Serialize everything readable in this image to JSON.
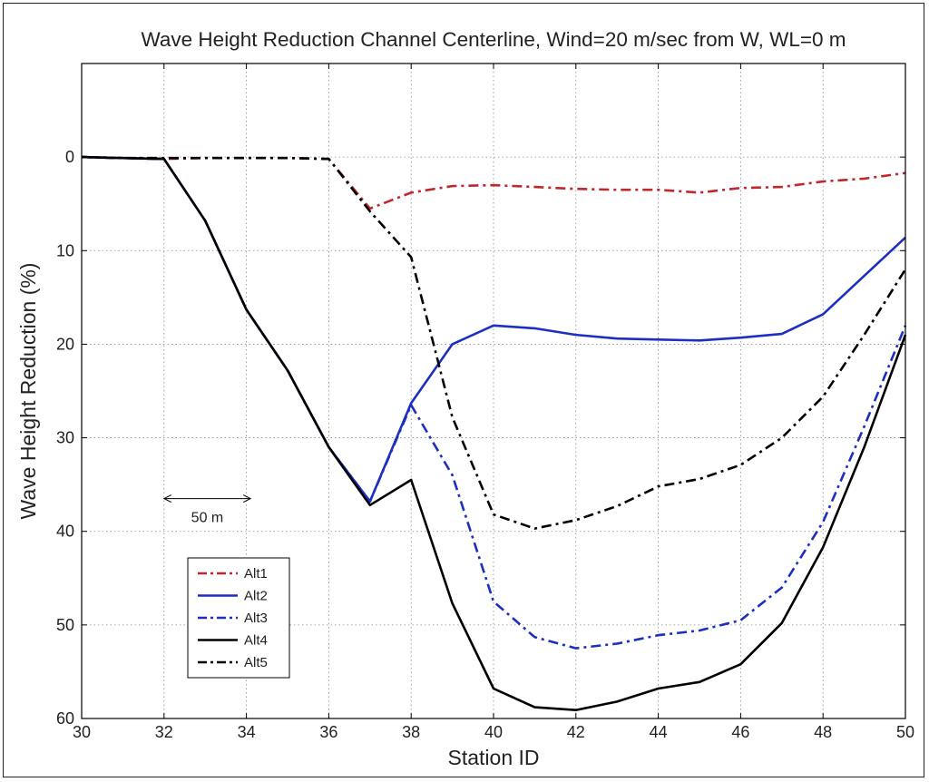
{
  "chart_data": {
    "type": "line",
    "title": "Wave Height Reduction Channel Centerline, Wind=20 m/sec from W, WL=0 m",
    "xlabel": "Station ID",
    "ylabel": "Wave Height Reduction (%)",
    "xlim": [
      30,
      50
    ],
    "ylim": [
      60,
      -10
    ],
    "y_inverted": true,
    "grid": true,
    "legend_placement": "lower-left",
    "xticks": [
      30,
      32,
      34,
      36,
      38,
      40,
      42,
      44,
      46,
      48,
      50
    ],
    "yticks": [
      0,
      10,
      20,
      30,
      40,
      50,
      60
    ],
    "annotation": {
      "text": "50 m",
      "x_start": 32,
      "x_end": 34.1,
      "y": 36.5
    },
    "series": [
      {
        "name": "Alt1",
        "color": "#c0272d",
        "style": "dashdot",
        "x": [
          30,
          31,
          32,
          33,
          34,
          35,
          36,
          37,
          38,
          39,
          40,
          41,
          42,
          43,
          44,
          45,
          46,
          47,
          48,
          49,
          50
        ],
        "y": [
          0,
          0.1,
          0.2,
          0.1,
          0.1,
          0.1,
          0.2,
          5.5,
          3.8,
          3.1,
          3,
          3.2,
          3.4,
          3.5,
          3.5,
          3.8,
          3.3,
          3.2,
          2.6,
          2.3,
          1.7
        ]
      },
      {
        "name": "Alt2",
        "color": "#1c2fc0",
        "style": "solid",
        "x": [
          30,
          31,
          32,
          33,
          34,
          35,
          36,
          37,
          38,
          39,
          40,
          41,
          42,
          43,
          44,
          45,
          46,
          47,
          48,
          49,
          50
        ],
        "y": [
          0,
          0.1,
          0.2,
          6.8,
          16.3,
          22.8,
          31,
          36.8,
          26.3,
          20,
          18,
          18.3,
          19,
          19.4,
          19.5,
          19.6,
          19.3,
          18.9,
          16.8,
          12.7,
          8.6
        ]
      },
      {
        "name": "Alt3",
        "color": "#1c2fc0",
        "style": "dashdot",
        "x": [
          30,
          31,
          32,
          33,
          34,
          35,
          36,
          37,
          38,
          39,
          40,
          41,
          42,
          43,
          44,
          45,
          46,
          47,
          48,
          49,
          50
        ],
        "y": [
          0,
          0.1,
          0.2,
          6.8,
          16.3,
          22.8,
          31,
          36.8,
          26.5,
          34,
          47.5,
          51.3,
          52.5,
          52,
          51.1,
          50.6,
          49.5,
          46,
          39,
          28.8,
          18
        ]
      },
      {
        "name": "Alt4",
        "color": "#000000",
        "style": "solid",
        "x": [
          30,
          31,
          32,
          33,
          34,
          35,
          36,
          37,
          38,
          39,
          40,
          41,
          42,
          43,
          44,
          45,
          46,
          47,
          48,
          49,
          50
        ],
        "y": [
          0,
          0.1,
          0.2,
          6.8,
          16.3,
          22.8,
          31,
          37.2,
          34.5,
          47.7,
          56.8,
          58.8,
          59.1,
          58.2,
          56.8,
          56.1,
          54.2,
          49.8,
          41.7,
          31,
          19
        ]
      },
      {
        "name": "Alt5",
        "color": "#000000",
        "style": "dashdot",
        "x": [
          30,
          31,
          32,
          33,
          34,
          35,
          36,
          37,
          38,
          39,
          40,
          41,
          42,
          43,
          44,
          45,
          46,
          47,
          48,
          49,
          50
        ],
        "y": [
          0,
          0.1,
          0.1,
          0.1,
          0.1,
          0.1,
          0.2,
          5.8,
          10.7,
          27.8,
          38.2,
          39.7,
          38.8,
          37.3,
          35.2,
          34.4,
          32.9,
          30,
          25.6,
          19,
          12
        ]
      }
    ]
  }
}
